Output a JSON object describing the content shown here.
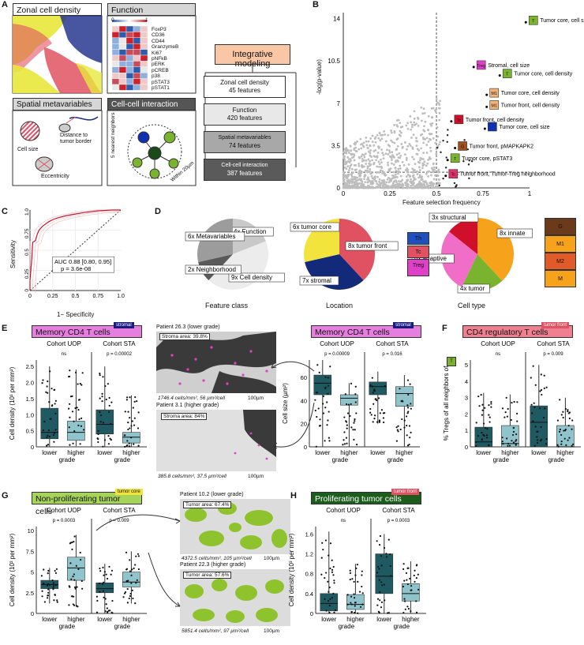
{
  "panels": {
    "a": "A",
    "b": "B",
    "c": "C",
    "d": "D",
    "e": "E",
    "f": "F",
    "g": "G",
    "h": "H"
  },
  "panel_a": {
    "zonal_title": "Zonal cell density",
    "function_title": "Function",
    "spatial_title": "Spatial metavariables",
    "cci_title": "Cell-cell interaction",
    "markers": [
      "FoxP3",
      "CD36",
      "CD44",
      "GranzymeB",
      "Ki67",
      "pNFkB",
      "pERK",
      "pCREB",
      "p38",
      "pSTAT3",
      "pSTAT1"
    ],
    "heat_scale": [
      "0",
      "1"
    ],
    "cell_size": "Cell size",
    "distance": "Distance to tumor border",
    "eccentricity": "Eccentricity",
    "neighbors": "5 nearest neighbors",
    "within": "Within 20µm",
    "integrative": "Integrative modeling",
    "flow": [
      {
        "title": "Zonal cell density",
        "sub": "45 features"
      },
      {
        "title": "Function",
        "sub": "420 features"
      },
      {
        "title": "Spatial metavariables",
        "sub": "74 features"
      },
      {
        "title": "Cell-cell interaction",
        "sub": "387 features"
      }
    ]
  },
  "chart_data": [
    {
      "type": "scatter",
      "panel": "B",
      "xlabel": "Feature selection frequency",
      "ylabel": "-log(p-value)",
      "xticks": [
        "0",
        "0.25",
        "0.5",
        "0.75",
        "1"
      ],
      "yticks": [
        "0",
        "3.5",
        "7",
        "10.5",
        "14"
      ],
      "xlim": [
        0,
        1
      ],
      "ylim": [
        0,
        14.5
      ],
      "labeled_points": [
        {
          "x": 0.98,
          "y": 13.7,
          "tag": "T",
          "label": "Tumor core, cell size",
          "color": "#7ab32e"
        },
        {
          "x": 0.7,
          "y": 10.0,
          "tag": "Treg",
          "label": "Stromal, cell size",
          "color": "#e040c8"
        },
        {
          "x": 0.84,
          "y": 9.3,
          "tag": "T",
          "label": "Tumor core, cell density",
          "color": "#7ab32e"
        },
        {
          "x": 0.77,
          "y": 7.7,
          "tag": "M1",
          "label": "Tumor core, cell density",
          "color": "#f2b27a"
        },
        {
          "x": 0.77,
          "y": 6.7,
          "tag": "M1",
          "label": "Tumor front, cell density",
          "color": "#f2b27a"
        },
        {
          "x": 0.58,
          "y": 5.5,
          "tag": "Tc",
          "label": "Tumor front, cell density",
          "color": "#d0102a"
        },
        {
          "x": 0.76,
          "y": 4.9,
          "tag": "",
          "label": "Tumor core, cell size",
          "color": "#1030b0"
        },
        {
          "x": 0.6,
          "y": 3.3,
          "tag": "G",
          "label": "Tumor front, pMAPKAPK2",
          "color": "#a0501a"
        },
        {
          "x": 0.56,
          "y": 2.3,
          "tag": "T",
          "label": "Tumor core, pSTAT3",
          "color": "#7ab32e"
        },
        {
          "x": 0.55,
          "y": 1.0,
          "tag": "Tc",
          "label": "Tumor front, Tumor-Treg neighborhood",
          "color": "#e0306a"
        }
      ]
    },
    {
      "type": "line",
      "panel": "C",
      "xlabel": "1− Specificity",
      "ylabel": "Sensitivity",
      "xticks": [
        "0",
        "0.25",
        "0.5",
        "0.75",
        "1.0"
      ],
      "yticks": [
        "0",
        "0.25",
        "0.5",
        "0.75",
        "1.0"
      ],
      "annotation": "AUC 0.88 [0.80, 0.95]",
      "pvalue": "p = 3.6e-08",
      "roc": [
        [
          0,
          0
        ],
        [
          0,
          0.12
        ],
        [
          0.02,
          0.4
        ],
        [
          0.03,
          0.6
        ],
        [
          0.06,
          0.62
        ],
        [
          0.08,
          0.7
        ],
        [
          0.1,
          0.75
        ],
        [
          0.14,
          0.8
        ],
        [
          0.2,
          0.85
        ],
        [
          0.25,
          0.88
        ],
        [
          0.3,
          0.9
        ],
        [
          0.4,
          0.93
        ],
        [
          0.5,
          0.95
        ],
        [
          0.6,
          0.97
        ],
        [
          0.75,
          0.99
        ],
        [
          0.9,
          1.0
        ],
        [
          1,
          1
        ]
      ]
    },
    {
      "type": "pie",
      "panel": "D",
      "title": "Feature class",
      "slices": [
        {
          "label": "4x Function",
          "value": 4,
          "color": "#c9c9c9"
        },
        {
          "label": "9x Cell density",
          "value": 9,
          "color": "#ececec"
        },
        {
          "label": "2x Neighborhood",
          "value": 2,
          "color": "#5a5a5a"
        },
        {
          "label": "6x Metavariables",
          "value": 6,
          "color": "#9c9c9c"
        }
      ]
    },
    {
      "type": "pie",
      "panel": "D",
      "title": "Location",
      "slices": [
        {
          "label": "8x tumor front",
          "value": 8,
          "color": "#e05262"
        },
        {
          "label": "7x stromal",
          "value": 7,
          "color": "#132a7a"
        },
        {
          "label": "6x tumor core",
          "value": 6,
          "color": "#f2e43c"
        }
      ]
    },
    {
      "type": "pie",
      "panel": "D",
      "title": "Cell type",
      "slices": [
        {
          "label": "8x innate",
          "value": 8,
          "color": "#f7a21b"
        },
        {
          "label": "4x tumor",
          "value": 4,
          "color": "#7ab32e"
        },
        {
          "label": "6x adaptive",
          "value": 6,
          "color": "#f06ec8"
        },
        {
          "label": "3x structural",
          "value": 3,
          "color": "#d0102a"
        }
      ]
    }
  ],
  "panel_d_legend": {
    "left": [
      "Th",
      "Tc",
      "Treg"
    ],
    "right": [
      "G",
      "M1",
      "M2",
      "M"
    ]
  },
  "panel_e": {
    "title": "Memory CD4 T cells",
    "tag": "stromal",
    "cohort1": "Cohort UOP",
    "cohort2": "Cohort STA",
    "p1": "ns",
    "p2": "p = 0.00002",
    "ylabel": "Cell  density (10³ per mm²)",
    "yticks": [
      "0",
      "0.5",
      "1.0",
      "1.5",
      "2.0",
      "2.5"
    ],
    "xticks": [
      "lower",
      "higher"
    ],
    "xlabel": "grade",
    "img1_title": "Patient 26.3 (lower grade)",
    "img1_box": "Stroma area: 39.8%",
    "img1_caption": "1746.4 cells/mm², 56 µm²/cell",
    "img2_title": "Patient 3.1 (higher grade)",
    "img2_box": "Stroma area: 84%",
    "img2_caption": "385.8 cells/mm², 37.5 µm²/cell",
    "scale": "100µm",
    "right_title": "Memory CD4 T cells",
    "right_tag": "stromal",
    "rp1": "p = 0.00009",
    "rp2": "p = 0.016",
    "right_ylabel": "Cell size (µm²)",
    "right_yticks": [
      "0",
      "20",
      "40",
      "60"
    ]
  },
  "panel_f": {
    "title": "CD4 regulatory T cells",
    "tag": "tumor front",
    "cohort1": "Cohort UOP",
    "cohort2": "Cohort STA",
    "p1": "ns",
    "p2": "p = 0.009",
    "ylabel": "% Tregs of all neighbors of",
    "icon_tag": "T",
    "yticks": [
      "0",
      "1",
      "2",
      "3",
      "4",
      "5"
    ],
    "xticks": [
      "lower",
      "higher"
    ],
    "xlabel": "grade"
  },
  "panel_g": {
    "title": "Non-proliferating tumor cells",
    "tag": "tumor core",
    "cohort1": "Cohort UOP",
    "cohort2": "Cohort STA",
    "p1": "p = 0.0003",
    "p2": "p = 0.009",
    "ylabel": "Cell density (10³ per mm²)",
    "yticks": [
      "0",
      "2.5",
      "5",
      "7.5",
      "10"
    ],
    "xticks": [
      "lower",
      "higher"
    ],
    "xlabel": "grade",
    "img1_title": "Patient 10.2 (lower grade)",
    "img1_box": "Tumor area: 67.4%",
    "img1_caption": "4372.5 cells/mm², 105 µm²/cell",
    "img2_title": "Patient 22.3 (higher grade)",
    "img2_box": "Tumor area: 57.6%",
    "img2_caption": "5851.4 cells/mm², 97 µm²/cell",
    "scale": "100µm"
  },
  "panel_h": {
    "title": "Proliferating tumor cells",
    "tag": "tumor front",
    "cohort1": "Cohort UOP",
    "cohort2": "Cohort STA",
    "p1": "ns",
    "p2": "p = 0.0003",
    "ylabel": "Cell density (10³ per mm²)",
    "yticks": [
      "0",
      "0.4",
      "0.8",
      "1.2",
      "1.6"
    ],
    "xticks": [
      "lower",
      "higher"
    ],
    "xlabel": "grade"
  },
  "colors": {
    "dark_box": "#1f5a63",
    "light_box": "#8fc4cc",
    "pink": "#e040c8",
    "green": "#7ab32e",
    "navy": "#1a1a80",
    "red": "#e05262"
  }
}
